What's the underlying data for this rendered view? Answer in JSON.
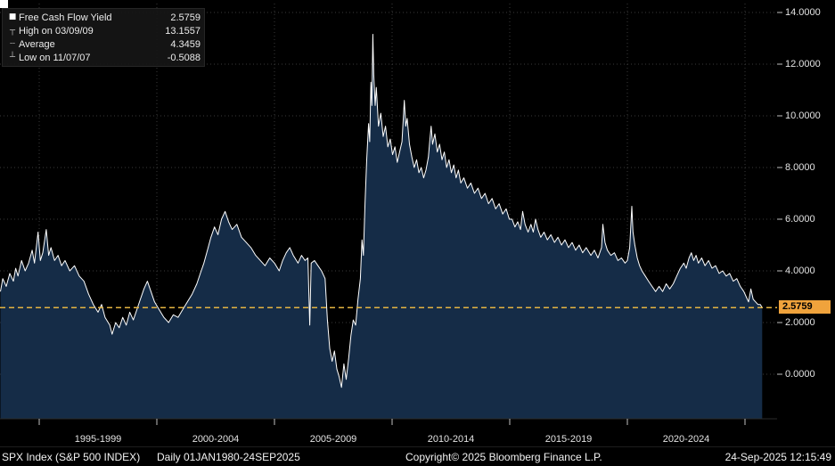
{
  "legend": {
    "rows": [
      {
        "icon_name": "series-square-icon",
        "glyph": "■",
        "label": "Free Cash Flow Yield",
        "value": "2.5759"
      },
      {
        "icon_name": "high-marker-icon",
        "glyph": "┬",
        "label": "High on 03/09/09",
        "value": "13.1557"
      },
      {
        "icon_name": "average-marker-icon",
        "glyph": "┄",
        "label": "Average",
        "value": "4.3459"
      },
      {
        "icon_name": "low-marker-icon",
        "glyph": "┴",
        "label": "Low on 11/07/07",
        "value": "-0.5088"
      }
    ]
  },
  "axis": {
    "y_tick_labels": [
      "14.0000",
      "12.0000",
      "10.0000",
      "8.0000",
      "6.0000",
      "4.0000",
      "2.0000",
      "0.0000"
    ],
    "y_tick_values": [
      14,
      12,
      10,
      8,
      6,
      4,
      2,
      0
    ],
    "x_tick_years": [
      1995,
      2000,
      2005,
      2010,
      2015,
      2020,
      2025
    ],
    "x_tick_labels": [
      "1995-1999",
      "2000-2004",
      "2005-2009",
      "2010-2014",
      "2015-2019",
      "2020-2024"
    ],
    "x_label_center_years": [
      1997.5,
      2002.5,
      2007.5,
      2012.5,
      2017.5,
      2022.5
    ],
    "last_label": "2.5759"
  },
  "footer": {
    "instrument": "SPX Index (S&P 500 INDEX)",
    "periodicity_range": "Daily 01JAN1980-24SEP2025",
    "copyright": "Copyright© 2025 Bloomberg Finance L.P.",
    "timestamp": "24-Sep-2025 12:15:49"
  },
  "colors": {
    "background": "#000000",
    "area_fill": "#152c47",
    "line": "#ffffff",
    "grid": "#3a3a3a",
    "accent_amber": "#f0a33c",
    "dashed_line": "#e3b341",
    "axis_tick": "#c0c0c0"
  },
  "chart_data": {
    "type": "area",
    "title": "Free Cash Flow Yield",
    "series_name": "Free Cash Flow Yield",
    "xlabel": "",
    "ylabel": "Free Cash Flow Yield (%)",
    "grid": "dotted",
    "legend_position": "top-left",
    "x_visible_range_years": [
      1993.33,
      2026.4
    ],
    "ylim": [
      -1.72,
      14.48
    ],
    "y_ticks": [
      0,
      2,
      4,
      6,
      8,
      10,
      12,
      14
    ],
    "last_value": 2.5759,
    "last_date": "24-Sep-2025",
    "high": {
      "date": "03/09/09",
      "value": 13.1557
    },
    "average": 4.3459,
    "low": {
      "date": "11/07/07",
      "value": -0.5088
    },
    "points": [
      [
        1993.34,
        3.2
      ],
      [
        1993.45,
        3.7
      ],
      [
        1993.6,
        3.4
      ],
      [
        1993.75,
        3.9
      ],
      [
        1993.9,
        3.6
      ],
      [
        1994.0,
        4.1
      ],
      [
        1994.1,
        3.8
      ],
      [
        1994.25,
        4.4
      ],
      [
        1994.4,
        4.0
      ],
      [
        1994.55,
        4.3
      ],
      [
        1994.7,
        4.8
      ],
      [
        1994.8,
        4.3
      ],
      [
        1994.95,
        5.5
      ],
      [
        1995.05,
        4.4
      ],
      [
        1995.15,
        4.7
      ],
      [
        1995.3,
        5.6
      ],
      [
        1995.4,
        4.6
      ],
      [
        1995.5,
        4.9
      ],
      [
        1995.65,
        4.4
      ],
      [
        1995.8,
        4.6
      ],
      [
        1995.95,
        4.2
      ],
      [
        1996.1,
        4.4
      ],
      [
        1996.3,
        4.0
      ],
      [
        1996.5,
        4.2
      ],
      [
        1996.7,
        3.8
      ],
      [
        1996.9,
        3.6
      ],
      [
        1997.1,
        3.1
      ],
      [
        1997.3,
        2.7
      ],
      [
        1997.5,
        2.4
      ],
      [
        1997.65,
        2.7
      ],
      [
        1997.8,
        2.2
      ],
      [
        1998.0,
        1.9
      ],
      [
        1998.1,
        1.55
      ],
      [
        1998.25,
        2.0
      ],
      [
        1998.4,
        1.8
      ],
      [
        1998.55,
        2.2
      ],
      [
        1998.7,
        1.9
      ],
      [
        1998.85,
        2.4
      ],
      [
        1999.0,
        2.1
      ],
      [
        1999.15,
        2.5
      ],
      [
        1999.3,
        2.9
      ],
      [
        1999.45,
        3.3
      ],
      [
        1999.6,
        3.6
      ],
      [
        1999.75,
        3.2
      ],
      [
        1999.9,
        2.8
      ],
      [
        2000.1,
        2.5
      ],
      [
        2000.3,
        2.2
      ],
      [
        2000.5,
        2.0
      ],
      [
        2000.7,
        2.3
      ],
      [
        2000.9,
        2.2
      ],
      [
        2001.1,
        2.5
      ],
      [
        2001.3,
        2.8
      ],
      [
        2001.5,
        3.1
      ],
      [
        2001.7,
        3.5
      ],
      [
        2001.85,
        3.9
      ],
      [
        2002.0,
        4.3
      ],
      [
        2002.15,
        4.8
      ],
      [
        2002.3,
        5.3
      ],
      [
        2002.45,
        5.7
      ],
      [
        2002.6,
        5.4
      ],
      [
        2002.75,
        6.0
      ],
      [
        2002.9,
        6.3
      ],
      [
        2003.05,
        5.9
      ],
      [
        2003.2,
        5.6
      ],
      [
        2003.4,
        5.8
      ],
      [
        2003.6,
        5.3
      ],
      [
        2003.8,
        5.1
      ],
      [
        2004.0,
        4.9
      ],
      [
        2004.2,
        4.6
      ],
      [
        2004.4,
        4.4
      ],
      [
        2004.6,
        4.2
      ],
      [
        2004.8,
        4.5
      ],
      [
        2005.0,
        4.3
      ],
      [
        2005.2,
        4.0
      ],
      [
        2005.35,
        4.4
      ],
      [
        2005.5,
        4.7
      ],
      [
        2005.65,
        4.9
      ],
      [
        2005.8,
        4.6
      ],
      [
        2006.0,
        4.3
      ],
      [
        2006.15,
        4.6
      ],
      [
        2006.3,
        4.4
      ],
      [
        2006.42,
        4.5
      ],
      [
        2006.5,
        1.9
      ],
      [
        2006.56,
        4.3
      ],
      [
        2006.7,
        4.4
      ],
      [
        2006.85,
        4.2
      ],
      [
        2007.0,
        4.0
      ],
      [
        2007.15,
        3.7
      ],
      [
        2007.25,
        2.1
      ],
      [
        2007.35,
        1.0
      ],
      [
        2007.45,
        0.5
      ],
      [
        2007.55,
        0.9
      ],
      [
        2007.65,
        0.2
      ],
      [
        2007.75,
        -0.1
      ],
      [
        2007.85,
        -0.5088
      ],
      [
        2007.95,
        0.4
      ],
      [
        2008.05,
        -0.2
      ],
      [
        2008.15,
        0.6
      ],
      [
        2008.25,
        1.5
      ],
      [
        2008.35,
        2.1
      ],
      [
        2008.45,
        1.9
      ],
      [
        2008.55,
        2.9
      ],
      [
        2008.65,
        3.7
      ],
      [
        2008.72,
        5.2
      ],
      [
        2008.78,
        4.6
      ],
      [
        2008.85,
        6.6
      ],
      [
        2008.92,
        8.3
      ],
      [
        2009.0,
        9.7
      ],
      [
        2009.05,
        9.0
      ],
      [
        2009.1,
        11.3
      ],
      [
        2009.14,
        10.4
      ],
      [
        2009.18,
        13.1557
      ],
      [
        2009.22,
        11.6
      ],
      [
        2009.28,
        10.4
      ],
      [
        2009.33,
        11.1
      ],
      [
        2009.42,
        9.6
      ],
      [
        2009.52,
        10.1
      ],
      [
        2009.62,
        9.2
      ],
      [
        2009.72,
        9.6
      ],
      [
        2009.82,
        8.8
      ],
      [
        2009.92,
        9.1
      ],
      [
        2010.02,
        8.5
      ],
      [
        2010.12,
        8.8
      ],
      [
        2010.22,
        8.2
      ],
      [
        2010.32,
        8.6
      ],
      [
        2010.42,
        9.0
      ],
      [
        2010.52,
        10.6
      ],
      [
        2010.58,
        9.6
      ],
      [
        2010.64,
        9.9
      ],
      [
        2010.74,
        8.9
      ],
      [
        2010.84,
        8.4
      ],
      [
        2010.94,
        8.0
      ],
      [
        2011.04,
        8.3
      ],
      [
        2011.14,
        7.8
      ],
      [
        2011.24,
        8.0
      ],
      [
        2011.34,
        7.6
      ],
      [
        2011.44,
        7.9
      ],
      [
        2011.54,
        8.4
      ],
      [
        2011.6,
        9.0
      ],
      [
        2011.66,
        9.6
      ],
      [
        2011.72,
        8.9
      ],
      [
        2011.82,
        9.3
      ],
      [
        2011.92,
        8.6
      ],
      [
        2012.02,
        8.9
      ],
      [
        2012.12,
        8.3
      ],
      [
        2012.22,
        8.6
      ],
      [
        2012.32,
        8.0
      ],
      [
        2012.42,
        8.3
      ],
      [
        2012.52,
        7.8
      ],
      [
        2012.62,
        8.1
      ],
      [
        2012.72,
        7.6
      ],
      [
        2012.82,
        7.9
      ],
      [
        2012.92,
        7.4
      ],
      [
        2013.05,
        7.6
      ],
      [
        2013.2,
        7.2
      ],
      [
        2013.35,
        7.4
      ],
      [
        2013.5,
        7.0
      ],
      [
        2013.65,
        7.2
      ],
      [
        2013.8,
        6.8
      ],
      [
        2013.95,
        7.0
      ],
      [
        2014.1,
        6.6
      ],
      [
        2014.25,
        6.8
      ],
      [
        2014.4,
        6.4
      ],
      [
        2014.55,
        6.6
      ],
      [
        2014.7,
        6.2
      ],
      [
        2014.85,
        6.4
      ],
      [
        2014.98,
        6.0
      ],
      [
        2015.1,
        6.0
      ],
      [
        2015.22,
        5.7
      ],
      [
        2015.34,
        5.9
      ],
      [
        2015.46,
        5.6
      ],
      [
        2015.55,
        6.3
      ],
      [
        2015.65,
        5.8
      ],
      [
        2015.78,
        5.5
      ],
      [
        2015.9,
        5.8
      ],
      [
        2016.0,
        5.5
      ],
      [
        2016.1,
        6.0
      ],
      [
        2016.2,
        5.6
      ],
      [
        2016.32,
        5.3
      ],
      [
        2016.46,
        5.5
      ],
      [
        2016.6,
        5.2
      ],
      [
        2016.75,
        5.4
      ],
      [
        2016.9,
        5.1
      ],
      [
        2017.05,
        5.3
      ],
      [
        2017.2,
        5.0
      ],
      [
        2017.35,
        5.2
      ],
      [
        2017.5,
        4.9
      ],
      [
        2017.65,
        5.1
      ],
      [
        2017.8,
        4.8
      ],
      [
        2017.95,
        5.0
      ],
      [
        2018.1,
        4.7
      ],
      [
        2018.25,
        4.9
      ],
      [
        2018.45,
        4.6
      ],
      [
        2018.6,
        4.8
      ],
      [
        2018.75,
        4.5
      ],
      [
        2018.9,
        4.9
      ],
      [
        2018.96,
        5.8
      ],
      [
        2019.05,
        5.1
      ],
      [
        2019.15,
        4.8
      ],
      [
        2019.3,
        4.6
      ],
      [
        2019.45,
        4.7
      ],
      [
        2019.6,
        4.4
      ],
      [
        2019.75,
        4.5
      ],
      [
        2019.9,
        4.3
      ],
      [
        2020.0,
        4.4
      ],
      [
        2020.1,
        4.9
      ],
      [
        2020.19,
        6.5
      ],
      [
        2020.24,
        5.5
      ],
      [
        2020.32,
        5.0
      ],
      [
        2020.42,
        4.5
      ],
      [
        2020.52,
        4.2
      ],
      [
        2020.62,
        4.0
      ],
      [
        2020.76,
        3.8
      ],
      [
        2020.9,
        3.6
      ],
      [
        2021.05,
        3.4
      ],
      [
        2021.2,
        3.2
      ],
      [
        2021.35,
        3.4
      ],
      [
        2021.5,
        3.2
      ],
      [
        2021.65,
        3.5
      ],
      [
        2021.8,
        3.3
      ],
      [
        2021.95,
        3.5
      ],
      [
        2022.1,
        3.8
      ],
      [
        2022.25,
        4.1
      ],
      [
        2022.4,
        4.3
      ],
      [
        2022.5,
        4.1
      ],
      [
        2022.62,
        4.5
      ],
      [
        2022.72,
        4.7
      ],
      [
        2022.82,
        4.4
      ],
      [
        2022.92,
        4.6
      ],
      [
        2023.02,
        4.3
      ],
      [
        2023.16,
        4.5
      ],
      [
        2023.3,
        4.2
      ],
      [
        2023.45,
        4.4
      ],
      [
        2023.6,
        4.1
      ],
      [
        2023.75,
        4.2
      ],
      [
        2023.9,
        3.9
      ],
      [
        2024.05,
        4.0
      ],
      [
        2024.2,
        3.8
      ],
      [
        2024.35,
        3.9
      ],
      [
        2024.5,
        3.6
      ],
      [
        2024.65,
        3.7
      ],
      [
        2024.8,
        3.4
      ],
      [
        2024.95,
        3.2
      ],
      [
        2025.05,
        3.0
      ],
      [
        2025.15,
        2.8
      ],
      [
        2025.25,
        3.3
      ],
      [
        2025.35,
        2.9
      ],
      [
        2025.45,
        2.8
      ],
      [
        2025.55,
        2.7
      ],
      [
        2025.65,
        2.7
      ],
      [
        2025.73,
        2.5759
      ]
    ]
  }
}
